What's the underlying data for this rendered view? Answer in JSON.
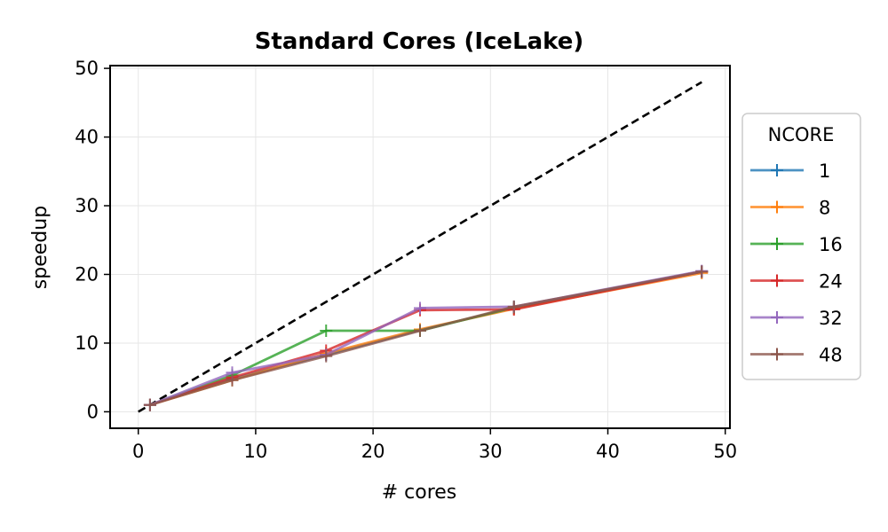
{
  "chart_data": {
    "type": "line",
    "title": "Standard Cores (IceLake)",
    "xlabel": "# cores",
    "ylabel": "speedup",
    "xlim": [
      -2.4,
      50.4
    ],
    "ylim": [
      -2.4,
      50.4
    ],
    "xticks": [
      0,
      10,
      20,
      30,
      40,
      50
    ],
    "yticks": [
      0,
      10,
      20,
      30,
      40,
      50
    ],
    "grid": true,
    "legend": {
      "title": "NCORE",
      "placement": "right"
    },
    "ideal_line": {
      "x": [
        0,
        48
      ],
      "y": [
        0,
        48
      ],
      "style": "dashed",
      "color": "#000000"
    },
    "series": [
      {
        "name": "1",
        "color": "#1f77b4",
        "x": [
          1,
          8,
          16,
          24,
          32,
          48
        ],
        "y": [
          1,
          4.8,
          8.3,
          11.9,
          15.1,
          20.4
        ]
      },
      {
        "name": "8",
        "color": "#ff7f0e",
        "x": [
          1,
          8,
          16,
          24,
          32,
          48
        ],
        "y": [
          1,
          4.6,
          8.5,
          12.0,
          15.0,
          20.2
        ]
      },
      {
        "name": "16",
        "color": "#2ca02c",
        "x": [
          1,
          8,
          16,
          24,
          32,
          48
        ],
        "y": [
          1,
          5.3,
          11.8,
          11.8,
          15.2,
          20.4
        ]
      },
      {
        "name": "24",
        "color": "#d62728",
        "x": [
          1,
          8,
          16,
          24,
          32,
          48
        ],
        "y": [
          1,
          5.0,
          8.9,
          14.8,
          14.9,
          20.4
        ]
      },
      {
        "name": "32",
        "color": "#9467bd",
        "x": [
          1,
          8,
          16,
          24,
          32,
          48
        ],
        "y": [
          1,
          5.7,
          8.3,
          15.1,
          15.3,
          20.5
        ]
      },
      {
        "name": "48",
        "color": "#8c564b",
        "x": [
          1,
          8,
          16,
          24,
          32,
          48
        ],
        "y": [
          1,
          4.6,
          8.1,
          11.8,
          15.3,
          20.4
        ]
      }
    ]
  }
}
